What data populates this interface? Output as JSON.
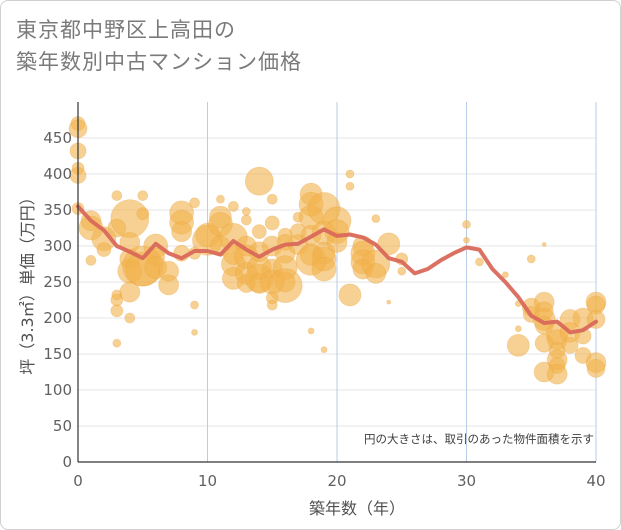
{
  "title_lines": [
    "東京都中野区上高田の",
    "築年数別中古マンション価格"
  ],
  "chart_data": {
    "type": "scatter",
    "xlabel": "築年数（年）",
    "ylabel": "坪（3.3㎡）単価（万円）",
    "xlim": [
      0,
      40
    ],
    "ylim": [
      0,
      500
    ],
    "xticks": [
      0,
      10,
      20,
      30,
      40
    ],
    "yticks": [
      0,
      50,
      100,
      150,
      200,
      250,
      300,
      350,
      400,
      450
    ],
    "grid": true,
    "note": "円の大きさは、取引のあった物件面積を示す",
    "colors": {
      "bubble": "#f2b24c",
      "line": "#d9695a",
      "grid": "#b9cde6"
    },
    "scatter_points": [
      {
        "x": 0,
        "y": 470,
        "s": 7
      },
      {
        "x": 0,
        "y": 463,
        "s": 9
      },
      {
        "x": 0,
        "y": 432,
        "s": 8
      },
      {
        "x": 0,
        "y": 408,
        "s": 6
      },
      {
        "x": 0,
        "y": 398,
        "s": 8
      },
      {
        "x": 0,
        "y": 352,
        "s": 6
      },
      {
        "x": 1,
        "y": 335,
        "s": 10
      },
      {
        "x": 1,
        "y": 325,
        "s": 12
      },
      {
        "x": 1,
        "y": 280,
        "s": 5
      },
      {
        "x": 2,
        "y": 310,
        "s": 12
      },
      {
        "x": 2,
        "y": 295,
        "s": 7
      },
      {
        "x": 3,
        "y": 370,
        "s": 5
      },
      {
        "x": 3,
        "y": 325,
        "s": 9
      },
      {
        "x": 3,
        "y": 232,
        "s": 5
      },
      {
        "x": 3,
        "y": 225,
        "s": 6
      },
      {
        "x": 3,
        "y": 210,
        "s": 6
      },
      {
        "x": 3,
        "y": 165,
        "s": 4
      },
      {
        "x": 4,
        "y": 338,
        "s": 19
      },
      {
        "x": 4,
        "y": 305,
        "s": 10
      },
      {
        "x": 4,
        "y": 282,
        "s": 10
      },
      {
        "x": 4,
        "y": 265,
        "s": 12
      },
      {
        "x": 4,
        "y": 236,
        "s": 10
      },
      {
        "x": 4,
        "y": 200,
        "s": 5
      },
      {
        "x": 5,
        "y": 370,
        "s": 5
      },
      {
        "x": 5,
        "y": 345,
        "s": 6
      },
      {
        "x": 5,
        "y": 272,
        "s": 20
      },
      {
        "x": 5,
        "y": 268,
        "s": 17
      },
      {
        "x": 6,
        "y": 300,
        "s": 12
      },
      {
        "x": 6,
        "y": 285,
        "s": 9
      },
      {
        "x": 6,
        "y": 270,
        "s": 11
      },
      {
        "x": 7,
        "y": 265,
        "s": 10
      },
      {
        "x": 7,
        "y": 246,
        "s": 10
      },
      {
        "x": 8,
        "y": 346,
        "s": 12
      },
      {
        "x": 8,
        "y": 333,
        "s": 12
      },
      {
        "x": 8,
        "y": 320,
        "s": 10
      },
      {
        "x": 8,
        "y": 290,
        "s": 8
      },
      {
        "x": 9,
        "y": 360,
        "s": 5
      },
      {
        "x": 9,
        "y": 290,
        "s": 6
      },
      {
        "x": 9,
        "y": 218,
        "s": 4
      },
      {
        "x": 9,
        "y": 180,
        "s": 3
      },
      {
        "x": 10,
        "y": 315,
        "s": 12
      },
      {
        "x": 10,
        "y": 308,
        "s": 15
      },
      {
        "x": 11,
        "y": 365,
        "s": 4
      },
      {
        "x": 11,
        "y": 340,
        "s": 11
      },
      {
        "x": 11,
        "y": 330,
        "s": 12
      },
      {
        "x": 11,
        "y": 300,
        "s": 10
      },
      {
        "x": 12,
        "y": 355,
        "s": 5
      },
      {
        "x": 12,
        "y": 312,
        "s": 14
      },
      {
        "x": 12,
        "y": 288,
        "s": 10
      },
      {
        "x": 12,
        "y": 275,
        "s": 12
      },
      {
        "x": 12,
        "y": 255,
        "s": 11
      },
      {
        "x": 13,
        "y": 348,
        "s": 4
      },
      {
        "x": 13,
        "y": 336,
        "s": 5
      },
      {
        "x": 13,
        "y": 300,
        "s": 10
      },
      {
        "x": 13,
        "y": 285,
        "s": 12
      },
      {
        "x": 13,
        "y": 262,
        "s": 11
      },
      {
        "x": 13,
        "y": 248,
        "s": 9
      },
      {
        "x": 14,
        "y": 390,
        "s": 14
      },
      {
        "x": 14,
        "y": 320,
        "s": 7
      },
      {
        "x": 14,
        "y": 292,
        "s": 10
      },
      {
        "x": 14,
        "y": 270,
        "s": 12
      },
      {
        "x": 14,
        "y": 255,
        "s": 14
      },
      {
        "x": 14,
        "y": 248,
        "s": 10
      },
      {
        "x": 15,
        "y": 365,
        "s": 5
      },
      {
        "x": 15,
        "y": 332,
        "s": 7
      },
      {
        "x": 15,
        "y": 300,
        "s": 10
      },
      {
        "x": 15,
        "y": 268,
        "s": 10
      },
      {
        "x": 15,
        "y": 250,
        "s": 12
      },
      {
        "x": 15,
        "y": 228,
        "s": 6
      },
      {
        "x": 15,
        "y": 218,
        "s": 5
      },
      {
        "x": 16,
        "y": 315,
        "s": 7
      },
      {
        "x": 16,
        "y": 305,
        "s": 8
      },
      {
        "x": 16,
        "y": 290,
        "s": 10
      },
      {
        "x": 16,
        "y": 270,
        "s": 12
      },
      {
        "x": 16,
        "y": 250,
        "s": 10
      },
      {
        "x": 16,
        "y": 245,
        "s": 17
      },
      {
        "x": 17,
        "y": 340,
        "s": 5
      },
      {
        "x": 17,
        "y": 320,
        "s": 8
      },
      {
        "x": 17,
        "y": 302,
        "s": 10
      },
      {
        "x": 18,
        "y": 372,
        "s": 11
      },
      {
        "x": 18,
        "y": 358,
        "s": 12
      },
      {
        "x": 18,
        "y": 340,
        "s": 12
      },
      {
        "x": 18,
        "y": 315,
        "s": 10
      },
      {
        "x": 18,
        "y": 288,
        "s": 11
      },
      {
        "x": 18,
        "y": 280,
        "s": 15
      },
      {
        "x": 18,
        "y": 182,
        "s": 3
      },
      {
        "x": 19,
        "y": 352,
        "s": 16
      },
      {
        "x": 19,
        "y": 318,
        "s": 12
      },
      {
        "x": 19,
        "y": 290,
        "s": 11
      },
      {
        "x": 19,
        "y": 282,
        "s": 12
      },
      {
        "x": 19,
        "y": 268,
        "s": 12
      },
      {
        "x": 19,
        "y": 156,
        "s": 3
      },
      {
        "x": 20,
        "y": 335,
        "s": 14
      },
      {
        "x": 20,
        "y": 320,
        "s": 12
      },
      {
        "x": 20,
        "y": 305,
        "s": 10
      },
      {
        "x": 21,
        "y": 400,
        "s": 4
      },
      {
        "x": 21,
        "y": 383,
        "s": 4
      },
      {
        "x": 21,
        "y": 232,
        "s": 11
      },
      {
        "x": 22,
        "y": 300,
        "s": 10
      },
      {
        "x": 22,
        "y": 290,
        "s": 12
      },
      {
        "x": 22,
        "y": 278,
        "s": 12
      },
      {
        "x": 22,
        "y": 268,
        "s": 10
      },
      {
        "x": 23,
        "y": 338,
        "s": 4
      },
      {
        "x": 23,
        "y": 275,
        "s": 14
      },
      {
        "x": 23,
        "y": 262,
        "s": 10
      },
      {
        "x": 24,
        "y": 303,
        "s": 11
      },
      {
        "x": 24,
        "y": 222,
        "s": 2
      },
      {
        "x": 25,
        "y": 282,
        "s": 6
      },
      {
        "x": 25,
        "y": 265,
        "s": 4
      },
      {
        "x": 30,
        "y": 330,
        "s": 4
      },
      {
        "x": 30,
        "y": 308,
        "s": 3
      },
      {
        "x": 31,
        "y": 278,
        "s": 4
      },
      {
        "x": 33,
        "y": 260,
        "s": 3
      },
      {
        "x": 34,
        "y": 220,
        "s": 3
      },
      {
        "x": 34,
        "y": 185,
        "s": 3
      },
      {
        "x": 34,
        "y": 162,
        "s": 11
      },
      {
        "x": 35,
        "y": 282,
        "s": 4
      },
      {
        "x": 35,
        "y": 215,
        "s": 9
      },
      {
        "x": 35,
        "y": 205,
        "s": 8
      },
      {
        "x": 36,
        "y": 302,
        "s": 2
      },
      {
        "x": 36,
        "y": 222,
        "s": 10
      },
      {
        "x": 36,
        "y": 210,
        "s": 9
      },
      {
        "x": 36,
        "y": 198,
        "s": 11
      },
      {
        "x": 36,
        "y": 190,
        "s": 9
      },
      {
        "x": 36,
        "y": 165,
        "s": 9
      },
      {
        "x": 36,
        "y": 125,
        "s": 10
      },
      {
        "x": 37,
        "y": 178,
        "s": 11
      },
      {
        "x": 37,
        "y": 170,
        "s": 10
      },
      {
        "x": 37,
        "y": 155,
        "s": 8
      },
      {
        "x": 37,
        "y": 142,
        "s": 10
      },
      {
        "x": 37,
        "y": 134,
        "s": 8
      },
      {
        "x": 37,
        "y": 122,
        "s": 10
      },
      {
        "x": 38,
        "y": 198,
        "s": 10
      },
      {
        "x": 38,
        "y": 180,
        "s": 10
      },
      {
        "x": 38,
        "y": 162,
        "s": 8
      },
      {
        "x": 39,
        "y": 200,
        "s": 10
      },
      {
        "x": 39,
        "y": 175,
        "s": 8
      },
      {
        "x": 39,
        "y": 148,
        "s": 8
      },
      {
        "x": 40,
        "y": 222,
        "s": 10
      },
      {
        "x": 40,
        "y": 218,
        "s": 9
      },
      {
        "x": 40,
        "y": 198,
        "s": 9
      },
      {
        "x": 40,
        "y": 138,
        "s": 10
      },
      {
        "x": 40,
        "y": 130,
        "s": 9
      }
    ],
    "series": [
      {
        "x": [
          0,
          1,
          2,
          3,
          4,
          5,
          6,
          7,
          8,
          9,
          10,
          11,
          12,
          13,
          14,
          15,
          16,
          17,
          18,
          19,
          20,
          21,
          22,
          23,
          24,
          25,
          26,
          27,
          28,
          29,
          30,
          31,
          32,
          33,
          34,
          35,
          36,
          37,
          38,
          39,
          40
        ],
        "values": [
          355,
          335,
          322,
          300,
          292,
          283,
          303,
          290,
          283,
          293,
          293,
          288,
          307,
          295,
          285,
          295,
          302,
          303,
          313,
          323,
          314,
          316,
          312,
          302,
          283,
          278,
          262,
          268,
          280,
          290,
          298,
          295,
          268,
          250,
          229,
          203,
          193,
          195,
          180,
          183,
          195
        ]
      }
    ]
  }
}
